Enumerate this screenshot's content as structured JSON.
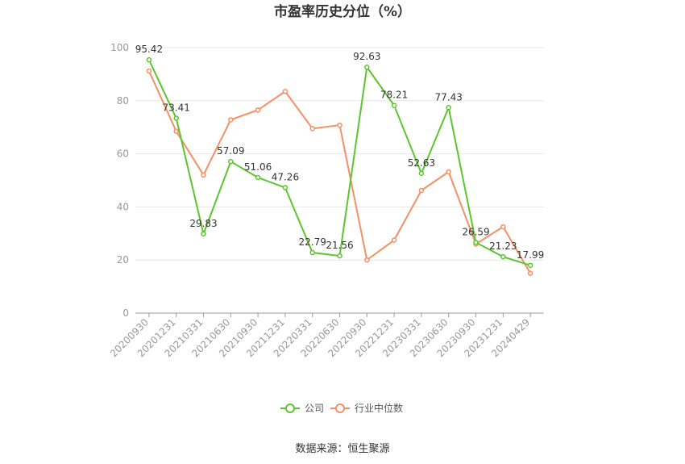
{
  "chart_data": {
    "type": "line",
    "title": "市盈率历史分位（%）",
    "source": "数据来源：恒生聚源",
    "categories": [
      "20200930",
      "20201231",
      "20210331",
      "20210630",
      "20210930",
      "20211231",
      "20220331",
      "20220630",
      "20220930",
      "20221231",
      "20230331",
      "20230630",
      "20230930",
      "20231231",
      "20240429"
    ],
    "ylim": [
      0,
      100
    ],
    "yticks": [
      0,
      20,
      40,
      60,
      80,
      100
    ],
    "grid": true,
    "legend_position": "bottom",
    "series": [
      {
        "name": "公司",
        "color": "#5cc52e",
        "show_labels": true,
        "values": [
          95.42,
          73.41,
          29.83,
          57.09,
          51.06,
          47.26,
          22.79,
          21.56,
          92.63,
          78.21,
          52.63,
          77.43,
          26.59,
          21.23,
          17.99
        ],
        "labels": [
          "95.42",
          "73.41",
          "29.83",
          "57.09",
          "51.06",
          "47.26",
          "22.79",
          "21.56",
          "92.63",
          "78.21",
          "52.63",
          "77.43",
          "26.59",
          "21.23",
          "17.99"
        ]
      },
      {
        "name": "行业中位数",
        "color": "#f39064",
        "show_labels": false,
        "values": [
          91.2,
          68.5,
          52.0,
          72.8,
          76.5,
          83.5,
          69.5,
          70.8,
          20.0,
          27.5,
          46.2,
          53.2,
          26.0,
          32.5,
          15.0
        ]
      }
    ]
  }
}
